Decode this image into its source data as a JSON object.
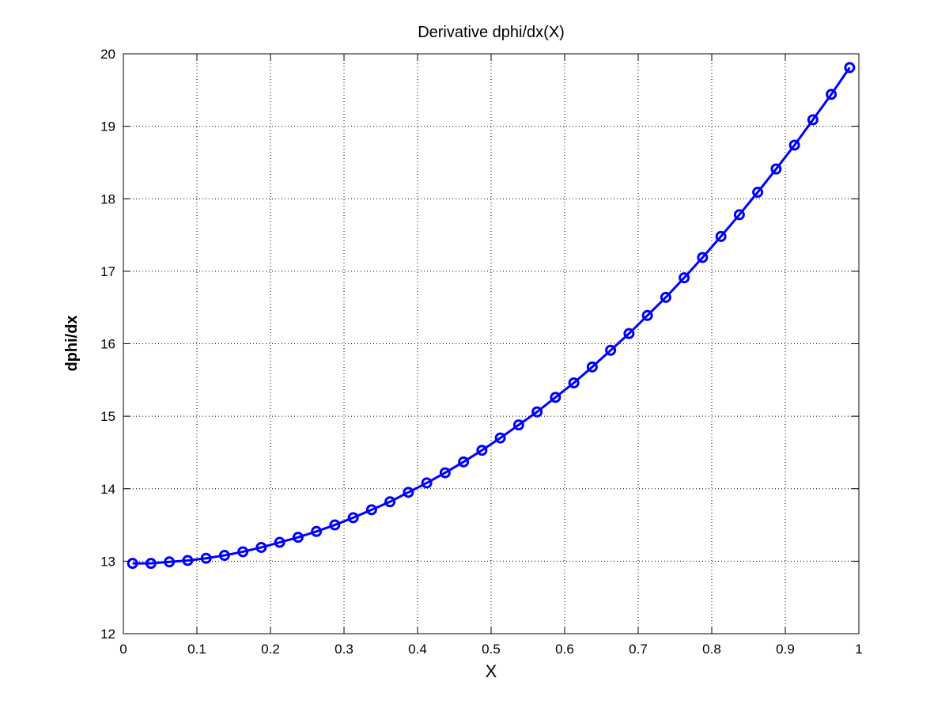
{
  "chart_data": {
    "type": "line",
    "title": "Derivative dphi/dx(X)",
    "xlabel": "X",
    "ylabel": "dphi/dx",
    "xlim": [
      0,
      1
    ],
    "ylim": [
      12,
      20
    ],
    "xticks": [
      "0",
      "0.1",
      "0.2",
      "0.3",
      "0.4",
      "0.5",
      "0.6",
      "0.7",
      "0.8",
      "0.9",
      "1"
    ],
    "yticks": [
      "12",
      "13",
      "14",
      "15",
      "16",
      "17",
      "18",
      "19",
      "20"
    ],
    "grid": true,
    "legend": "none",
    "series": [
      {
        "color": "#0000ff",
        "marker": "circle",
        "x": [
          0.0125,
          0.0375,
          0.0625,
          0.0875,
          0.1125,
          0.1375,
          0.1625,
          0.1875,
          0.2125,
          0.2375,
          0.2625,
          0.2875,
          0.3125,
          0.3375,
          0.3625,
          0.3875,
          0.4125,
          0.4375,
          0.4625,
          0.4875,
          0.5125,
          0.5375,
          0.5625,
          0.5875,
          0.6125,
          0.6375,
          0.6625,
          0.6875,
          0.7125,
          0.7375,
          0.7625,
          0.7875,
          0.8125,
          0.8375,
          0.8625,
          0.8875,
          0.9125,
          0.9375,
          0.9625,
          0.9875
        ],
        "y": [
          12.97,
          12.97,
          12.99,
          13.01,
          13.04,
          13.08,
          13.13,
          13.19,
          13.26,
          13.33,
          13.41,
          13.5,
          13.6,
          13.71,
          13.82,
          13.95,
          14.08,
          14.22,
          14.37,
          14.53,
          14.7,
          14.88,
          15.06,
          15.26,
          15.46,
          15.68,
          15.91,
          16.14,
          16.39,
          16.64,
          16.91,
          17.19,
          17.48,
          17.78,
          18.09,
          18.41,
          18.74,
          19.09,
          19.44,
          19.81
        ]
      }
    ]
  }
}
